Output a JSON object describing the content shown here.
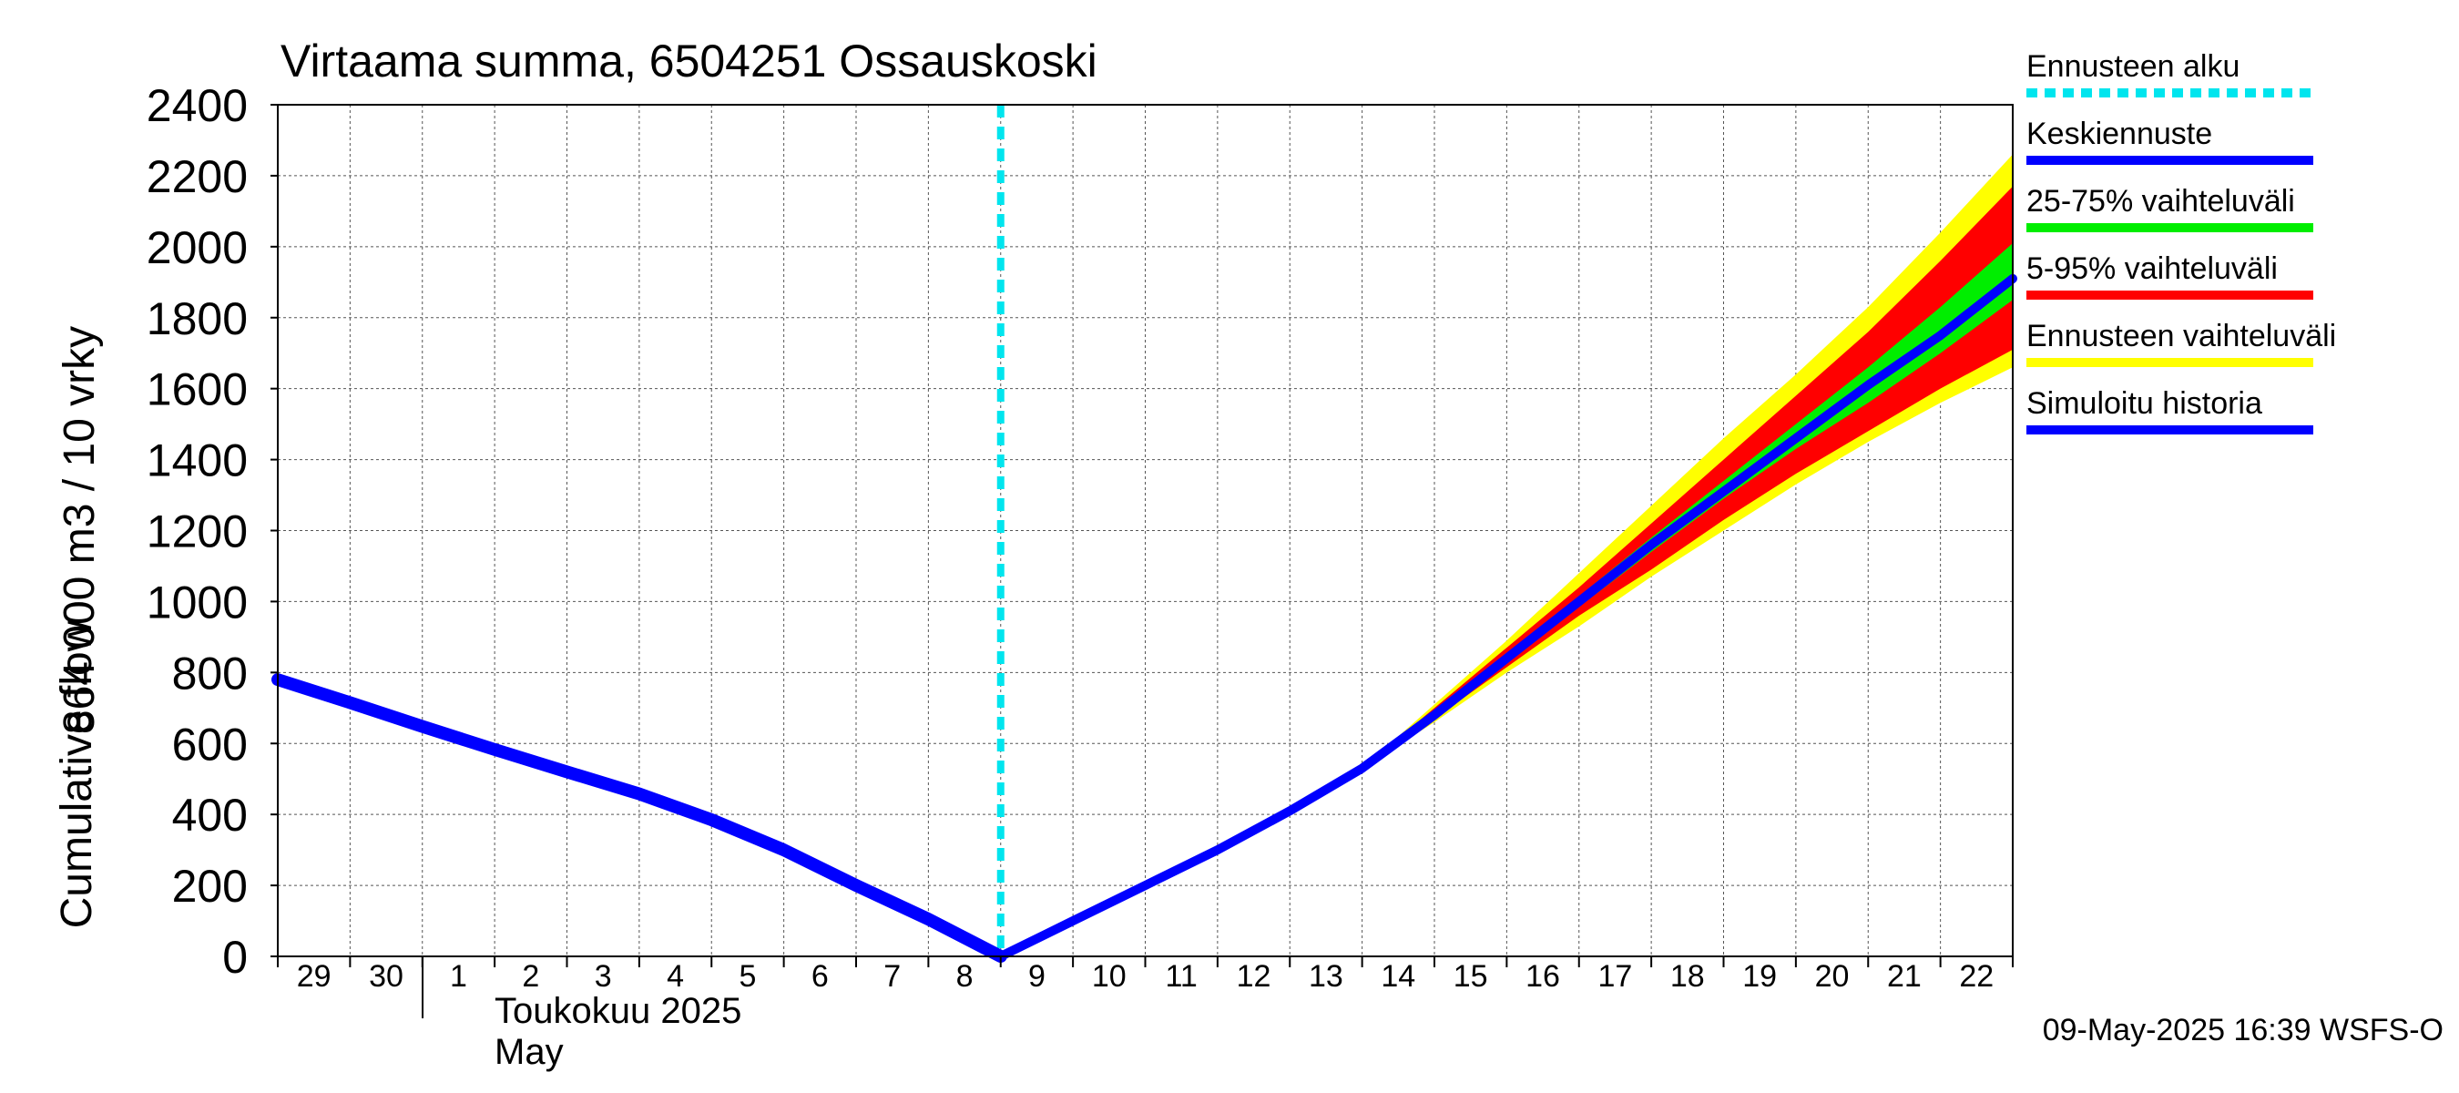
{
  "chart_data": {
    "type": "area",
    "title": "Virtaama summa, 6504251 Ossauskoski",
    "ylabel_line1": "864 000 m3 / 10 vrky",
    "ylabel_line2": "Cumulative flow",
    "ylim": [
      0,
      2400
    ],
    "yticks": [
      0,
      200,
      400,
      600,
      800,
      1000,
      1200,
      1400,
      1600,
      1800,
      2000,
      2200,
      2400
    ],
    "x_tick_labels": [
      "29",
      "30",
      "1",
      "2",
      "3",
      "4",
      "5",
      "6",
      "7",
      "8",
      "9",
      "10",
      "11",
      "12",
      "13",
      "14",
      "15",
      "16",
      "17",
      "18",
      "19",
      "20",
      "21",
      "22"
    ],
    "x_range_days": [
      -1.0,
      23.0
    ],
    "month_label_fi": "Toukokuu  2025",
    "month_label_en": "May",
    "grid": true,
    "legend_position": "right",
    "forecast_start_day": 9,
    "legend": [
      {
        "label": "Ennusteen alku",
        "color": "#00e5ee",
        "dashed": true
      },
      {
        "label": "Keskiennuste",
        "color": "#0000ff"
      },
      {
        "label": "25-75% vaihteluväli",
        "color": "#00ee00"
      },
      {
        "label": "5-95% vaihteluväli",
        "color": "#ff0000"
      },
      {
        "label": "Ennusteen vaihteluväli",
        "color": "#ffff00"
      },
      {
        "label": "Simuloitu historia",
        "color": "#0000ff"
      }
    ],
    "series": [
      {
        "name": "Simuloitu historia",
        "color": "#0000ff",
        "x": [
          -1,
          0,
          1,
          2,
          3,
          4,
          5,
          6,
          7,
          8,
          9
        ],
        "y": [
          780,
          715,
          648,
          583,
          520,
          458,
          385,
          300,
          200,
          105,
          0
        ]
      },
      {
        "name": "Keskiennuste",
        "color": "#0000ff",
        "x": [
          9,
          10,
          11,
          12,
          13,
          14,
          15,
          16,
          17,
          18,
          19,
          20,
          21,
          22,
          23
        ],
        "y": [
          0,
          100,
          200,
          300,
          410,
          530,
          680,
          840,
          1000,
          1160,
          1310,
          1460,
          1610,
          1750,
          1910
        ]
      },
      {
        "name": "Ennusteen vaihteluväli",
        "color": "#ffff00",
        "x": [
          14,
          15,
          16,
          17,
          18,
          19,
          20,
          21,
          22,
          23
        ],
        "low": [
          530,
          660,
          800,
          930,
          1070,
          1200,
          1330,
          1450,
          1560,
          1660
        ],
        "high": [
          530,
          710,
          890,
          1080,
          1270,
          1460,
          1640,
          1830,
          2040,
          2260
        ]
      },
      {
        "name": "5-95% vaihteluväli",
        "color": "#ff0000",
        "x": [
          14,
          15,
          16,
          17,
          18,
          19,
          20,
          21,
          22,
          23
        ],
        "low": [
          530,
          670,
          815,
          960,
          1090,
          1230,
          1360,
          1480,
          1600,
          1710
        ],
        "high": [
          530,
          700,
          870,
          1040,
          1220,
          1400,
          1580,
          1760,
          1960,
          2170
        ]
      },
      {
        "name": "25-75% vaihteluväli",
        "color": "#00ee00",
        "x": [
          14,
          15,
          16,
          17,
          18,
          19,
          20,
          21,
          22,
          23
        ],
        "low": [
          530,
          675,
          830,
          985,
          1140,
          1290,
          1430,
          1560,
          1700,
          1850
        ],
        "high": [
          530,
          685,
          850,
          1015,
          1180,
          1340,
          1500,
          1660,
          1830,
          2010
        ]
      }
    ]
  },
  "footer": {
    "timestamp": "09-May-2025 16:39 WSFS-O"
  }
}
